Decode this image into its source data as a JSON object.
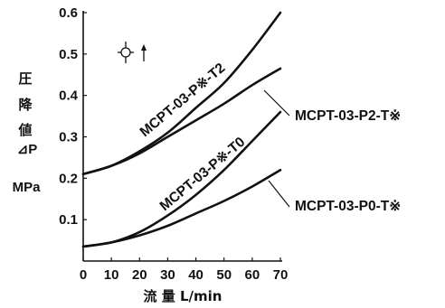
{
  "chart_data": {
    "type": "line",
    "xlabel": "流 量 L/min",
    "ylabel_chars": [
      "圧",
      "降",
      "値"
    ],
    "ylabel_symbol": "⊿P",
    "ylabel_unit": "MPa",
    "xlim": [
      0,
      70
    ],
    "ylim": [
      0,
      0.6
    ],
    "x_ticks": [
      "0",
      "10",
      "20",
      "30",
      "40",
      "50",
      "60",
      "70"
    ],
    "y_ticks": [
      "0.1",
      "0.2",
      "0.3",
      "0.4",
      "0.5",
      "0.6"
    ],
    "grid": false,
    "series": [
      {
        "name": "MCPT-03-P※-T2",
        "label_type": "on-curve",
        "x": [
          0,
          10,
          20,
          30,
          40,
          50,
          60,
          70
        ],
        "y": [
          0.21,
          0.23,
          0.265,
          0.31,
          0.37,
          0.43,
          0.51,
          0.6
        ]
      },
      {
        "name": "MCPT-03-P2-T※",
        "label_type": "callout",
        "x": [
          0,
          10,
          20,
          30,
          40,
          50,
          60,
          70
        ],
        "y": [
          0.21,
          0.23,
          0.26,
          0.3,
          0.34,
          0.38,
          0.425,
          0.465
        ]
      },
      {
        "name": "MCPT-03-P※-T0",
        "label_type": "on-curve",
        "x": [
          0,
          10,
          20,
          30,
          40,
          50,
          60,
          70
        ],
        "y": [
          0.035,
          0.045,
          0.07,
          0.11,
          0.16,
          0.22,
          0.29,
          0.36
        ]
      },
      {
        "name": "MCPT-03-P0-T※",
        "label_type": "callout",
        "x": [
          0,
          10,
          20,
          30,
          40,
          50,
          60,
          70
        ],
        "y": [
          0.035,
          0.045,
          0.062,
          0.085,
          0.115,
          0.145,
          0.18,
          0.22
        ]
      }
    ]
  }
}
